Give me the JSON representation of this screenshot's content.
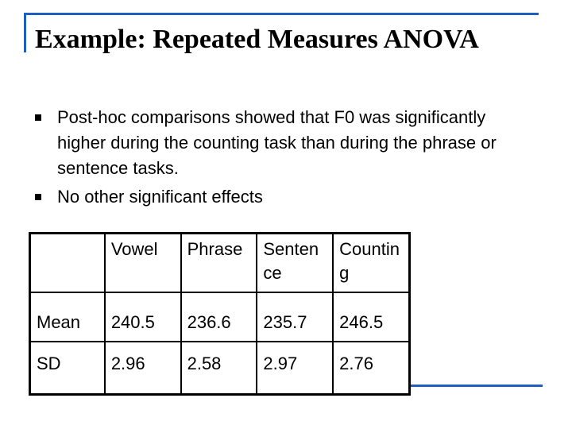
{
  "slide": {
    "title": "Example:  Repeated Measures ANOVA",
    "bullets": [
      "Post-hoc comparisons showed that F0 was significantly higher during the counting task than during the phrase or sentence tasks.",
      "No other significant effects"
    ]
  },
  "table": {
    "columns": [
      "",
      "Vowel",
      "Phrase",
      "Sentence",
      "Counting"
    ],
    "rows": [
      {
        "label": "Mean",
        "values": [
          "240.5",
          "236.6",
          "235.7",
          "246.5"
        ]
      },
      {
        "label": "SD",
        "values": [
          "2.96",
          "2.58",
          "2.97",
          "2.76"
        ]
      }
    ]
  },
  "colors": {
    "accent_rule": "#1f5fbf",
    "text": "#000000",
    "background": "#ffffff"
  }
}
